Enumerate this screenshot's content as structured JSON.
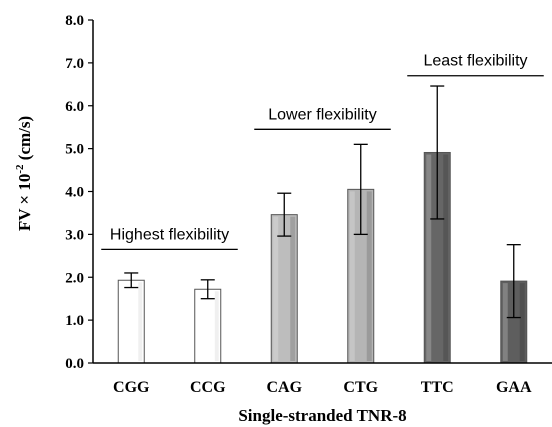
{
  "chart_data": {
    "type": "bar",
    "title": "",
    "xlabel": "Single-stranded TNR-8",
    "ylabel": {
      "pre": "FV × 10",
      "sup": "-2",
      "post": " (cm/s)"
    },
    "ylim": [
      0,
      8
    ],
    "yticks": [
      "0.0",
      "1.0",
      "2.0",
      "3.0",
      "4.0",
      "5.0",
      "6.0",
      "7.0",
      "8.0"
    ],
    "grid": false,
    "categories": [
      "CGG",
      "CCG",
      "CAG",
      "CTG",
      "TTC",
      "GAA"
    ],
    "values": [
      1.93,
      1.72,
      3.46,
      4.05,
      4.91,
      1.91
    ],
    "errors": [
      0.17,
      0.22,
      0.5,
      1.05,
      1.55,
      0.85
    ],
    "colors": [
      "#ffffff",
      "#ffffff",
      "#bdbdbd",
      "#b5b5b5",
      "#666666",
      "#5e5e5e"
    ],
    "annotations": [
      {
        "text": "Highest flexibility",
        "from": 0,
        "to": 1,
        "y": 2.65
      },
      {
        "text": "Lower flexibility",
        "from": 2,
        "to": 3,
        "y": 5.45
      },
      {
        "text": "Least flexibility",
        "from": 4,
        "to": 5,
        "y": 6.7
      }
    ]
  }
}
